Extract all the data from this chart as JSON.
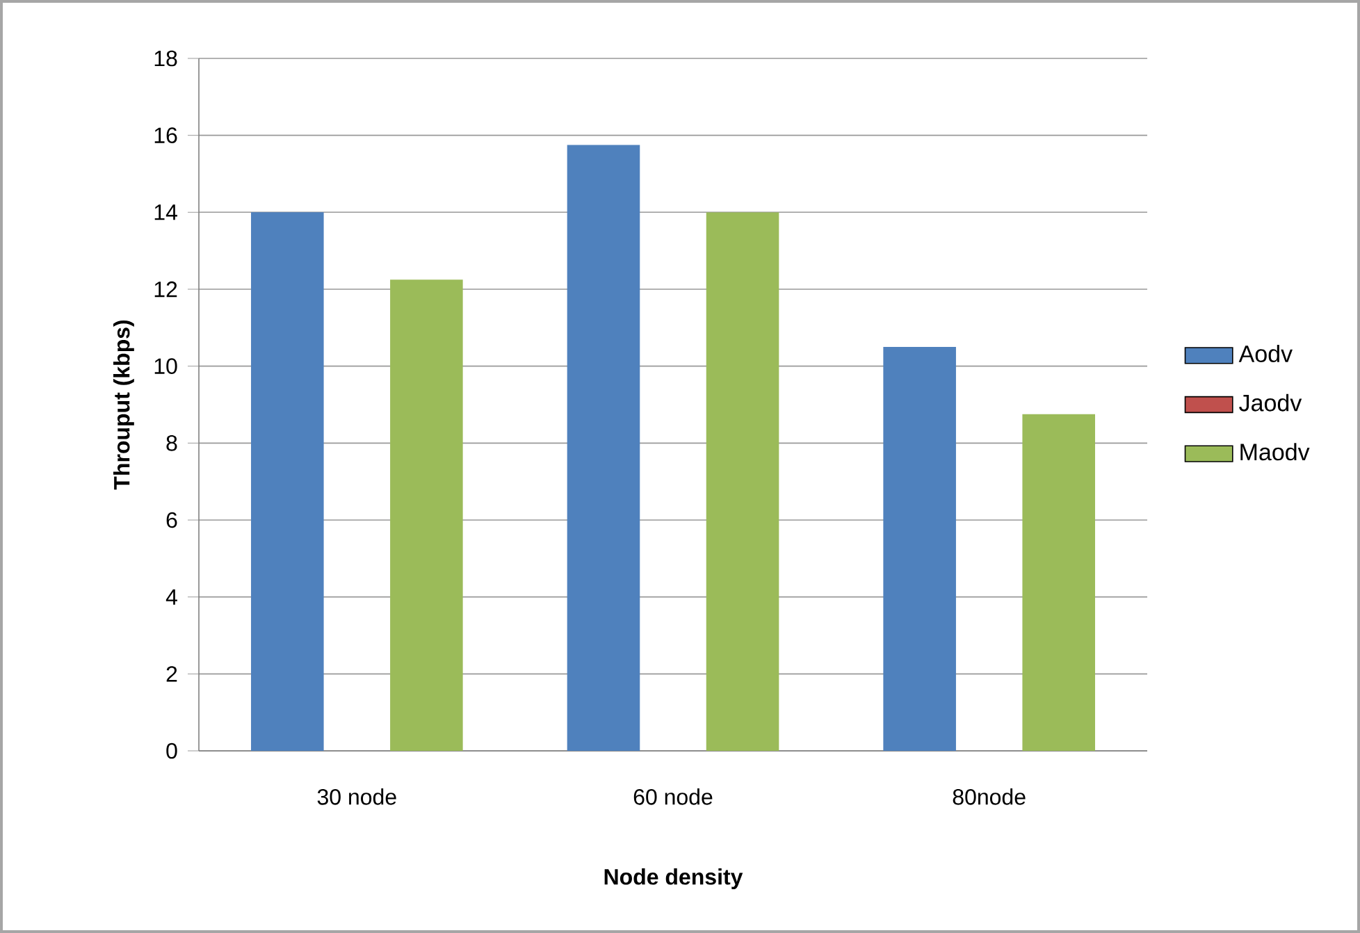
{
  "chart_data": {
    "type": "bar",
    "xlabel": "Node density",
    "ylabel": "Throuput (kbps)",
    "categories": [
      "30 node",
      "60 node",
      "80node"
    ],
    "series": [
      {
        "name": "Aodv",
        "color": "#4f81bd",
        "values": [
          14,
          15.75,
          10.5
        ]
      },
      {
        "name": "Jaodv",
        "color": "#c0504d",
        "values": [
          null,
          null,
          null
        ]
      },
      {
        "name": "Maodv",
        "color": "#9bbb59",
        "values": [
          12.25,
          14,
          8.75
        ]
      }
    ],
    "ylim": [
      0,
      18
    ],
    "yticks": [
      0,
      2,
      4,
      6,
      8,
      10,
      12,
      14,
      16,
      18
    ],
    "grid": "y",
    "legend": "right"
  }
}
